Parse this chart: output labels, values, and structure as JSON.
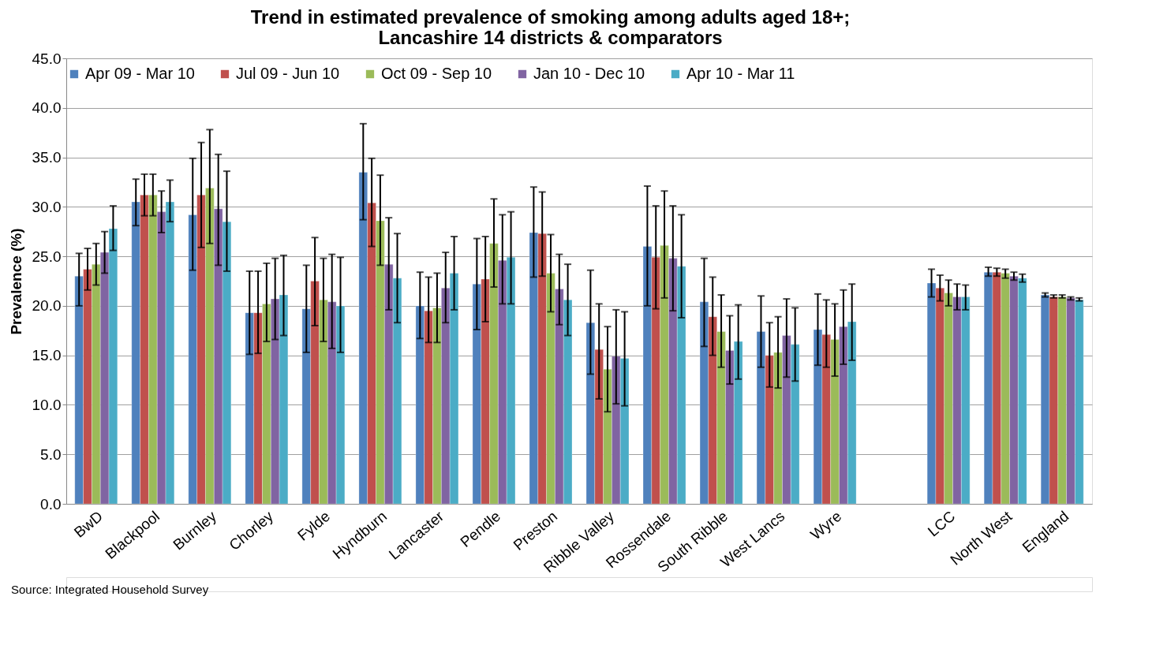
{
  "chart_data": {
    "type": "bar",
    "title": "Trend in estimated prevalence of smoking among adults aged 18+;\nLancashire 14 districts & comparators",
    "ylabel": "Prevalence (%)",
    "categories": [
      "BwD",
      "Blackpool",
      "Burnley",
      "Chorley",
      "Fylde",
      "Hyndburn",
      "Lancaster",
      "Pendle",
      "Preston",
      "Ribble Valley",
      "Rossendale",
      "South Ribble",
      "West Lancs",
      "Wyre",
      null,
      "LCC",
      "North West",
      "England"
    ],
    "series": [
      {
        "name": "Apr 09 - Mar 10",
        "color": "#4f81bd",
        "values": [
          23.0,
          30.5,
          29.2,
          19.3,
          19.7,
          33.5,
          20.0,
          22.2,
          27.4,
          18.3,
          26.0,
          20.4,
          17.4,
          17.6,
          null,
          22.3,
          23.4,
          21.1
        ],
        "errors": [
          [
            20.0,
            25.3
          ],
          [
            28.1,
            32.8
          ],
          [
            23.6,
            34.9
          ],
          [
            15.1,
            23.5
          ],
          [
            15.3,
            24.1
          ],
          [
            28.7,
            38.4
          ],
          [
            16.7,
            23.4
          ],
          [
            17.6,
            26.8
          ],
          [
            22.9,
            32.0
          ],
          [
            13.1,
            23.6
          ],
          [
            20.0,
            32.1
          ],
          [
            15.9,
            24.8
          ],
          [
            13.8,
            21.0
          ],
          [
            14.0,
            21.2
          ],
          null,
          [
            20.9,
            23.7
          ],
          [
            23.0,
            23.9
          ],
          [
            20.9,
            21.3
          ]
        ]
      },
      {
        "name": "Jul 09 - Jun 10",
        "color": "#c0504d",
        "values": [
          23.7,
          31.2,
          31.2,
          19.3,
          22.5,
          30.4,
          19.5,
          22.7,
          27.3,
          15.6,
          24.9,
          18.9,
          15.0,
          17.1,
          null,
          21.8,
          23.4,
          20.9
        ],
        "errors": [
          [
            21.6,
            25.8
          ],
          [
            29.1,
            33.3
          ],
          [
            25.9,
            36.5
          ],
          [
            15.2,
            23.5
          ],
          [
            18.0,
            26.9
          ],
          [
            26.0,
            34.9
          ],
          [
            16.3,
            22.9
          ],
          [
            18.4,
            27.0
          ],
          [
            23.0,
            31.5
          ],
          [
            10.6,
            20.2
          ],
          [
            19.7,
            30.1
          ],
          [
            15.0,
            22.9
          ],
          [
            11.8,
            18.3
          ],
          [
            13.8,
            20.6
          ],
          null,
          [
            20.5,
            23.1
          ],
          [
            23.0,
            23.8
          ],
          [
            20.8,
            21.1
          ]
        ]
      },
      {
        "name": "Oct 09 - Sep 10",
        "color": "#9bbb59",
        "values": [
          24.2,
          31.2,
          31.9,
          20.2,
          20.6,
          28.6,
          19.8,
          26.3,
          23.3,
          13.6,
          26.1,
          17.4,
          15.3,
          16.6,
          null,
          21.3,
          23.3,
          20.9
        ],
        "errors": [
          [
            22.1,
            26.3
          ],
          [
            29.1,
            33.3
          ],
          [
            26.3,
            37.8
          ],
          [
            16.4,
            24.3
          ],
          [
            16.4,
            24.8
          ],
          [
            24.1,
            33.2
          ],
          [
            16.3,
            23.3
          ],
          [
            21.9,
            30.8
          ],
          [
            19.4,
            27.2
          ],
          [
            9.3,
            17.9
          ],
          [
            20.8,
            31.6
          ],
          [
            13.8,
            21.1
          ],
          [
            11.7,
            18.9
          ],
          [
            12.9,
            20.2
          ],
          null,
          [
            20.0,
            22.6
          ],
          [
            22.8,
            23.7
          ],
          [
            20.8,
            21.1
          ]
        ]
      },
      {
        "name": "Jan 10 - Dec 10",
        "color": "#8064a2",
        "values": [
          25.4,
          29.5,
          29.8,
          20.7,
          20.4,
          24.2,
          21.8,
          24.6,
          21.7,
          14.9,
          24.8,
          15.5,
          17.0,
          17.9,
          null,
          20.9,
          23.0,
          20.8
        ],
        "errors": [
          [
            23.3,
            27.5
          ],
          [
            27.4,
            31.6
          ],
          [
            24.1,
            35.3
          ],
          [
            16.6,
            24.8
          ],
          [
            15.7,
            25.2
          ],
          [
            19.6,
            28.9
          ],
          [
            18.3,
            25.4
          ],
          [
            20.2,
            29.2
          ],
          [
            18.1,
            25.2
          ],
          [
            10.1,
            19.6
          ],
          [
            19.5,
            30.1
          ],
          [
            12.1,
            19.0
          ],
          [
            12.8,
            20.7
          ],
          [
            14.1,
            21.6
          ],
          null,
          [
            19.6,
            22.2
          ],
          [
            22.6,
            23.4
          ],
          [
            20.6,
            20.9
          ]
        ]
      },
      {
        "name": "Apr 10 - Mar 11",
        "color": "#4bacc6",
        "values": [
          27.8,
          30.5,
          28.5,
          21.1,
          20.0,
          22.8,
          23.3,
          24.9,
          20.6,
          14.7,
          24.0,
          16.4,
          16.1,
          18.4,
          null,
          20.9,
          22.8,
          20.6
        ],
        "errors": [
          [
            25.6,
            30.1
          ],
          [
            28.5,
            32.7
          ],
          [
            23.5,
            33.6
          ],
          [
            17.0,
            25.1
          ],
          [
            15.3,
            24.9
          ],
          [
            18.3,
            27.3
          ],
          [
            19.6,
            27.0
          ],
          [
            20.2,
            29.5
          ],
          [
            17.0,
            24.2
          ],
          [
            9.9,
            19.4
          ],
          [
            18.8,
            29.2
          ],
          [
            12.6,
            20.1
          ],
          [
            12.4,
            19.8
          ],
          [
            14.5,
            22.2
          ],
          null,
          [
            19.6,
            22.1
          ],
          [
            22.4,
            23.2
          ],
          [
            20.5,
            20.8
          ]
        ]
      }
    ],
    "ylim": [
      0,
      45
    ],
    "yticks": [
      {
        "value": 0,
        "label": "0.0"
      },
      {
        "value": 5,
        "label": "5.0"
      },
      {
        "value": 10,
        "label": "10.0"
      },
      {
        "value": 15,
        "label": "15.0"
      },
      {
        "value": 20,
        "label": "20.0"
      },
      {
        "value": 25,
        "label": "25.0"
      },
      {
        "value": 30,
        "label": "30.0"
      },
      {
        "value": 35,
        "label": "35.0"
      },
      {
        "value": 40,
        "label": "40.0"
      },
      {
        "value": 45,
        "label": "45.0"
      }
    ],
    "grid": "y",
    "legend": "top",
    "annotations": [
      "Source: Integrated Household Survey"
    ]
  }
}
